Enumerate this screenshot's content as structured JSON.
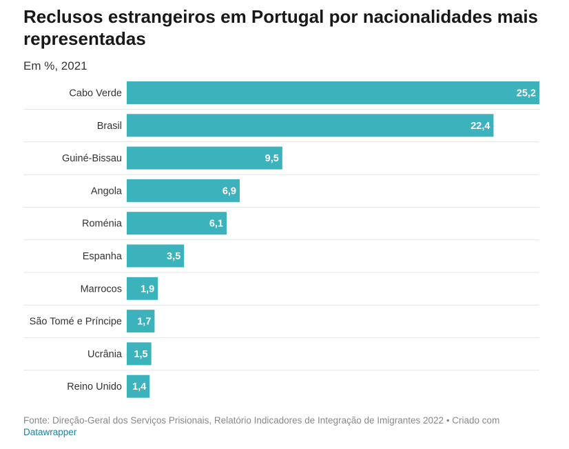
{
  "header": {
    "title": "Reclusos estrangeiros em Portugal por nacionalidades mais representadas",
    "subtitle": "Em %, 2021"
  },
  "footer": {
    "source": "Fonte: Direção-Geral dos Serviços Prisionais, Relatório Indicadores de Integração de Imigrantes 2022 • Criado com",
    "link": "Datawrapper"
  },
  "chart_data": {
    "type": "bar",
    "orientation": "horizontal",
    "categories": [
      "Cabo Verde",
      "Brasil",
      "Guiné-Bissau",
      "Angola",
      "Roménia",
      "Espanha",
      "Marrocos",
      "São Tomé e Príncipe",
      "Ucrânia",
      "Reino Unido"
    ],
    "values": [
      25.2,
      22.4,
      9.5,
      6.9,
      6.1,
      3.5,
      1.9,
      1.7,
      1.5,
      1.4
    ],
    "value_labels": [
      "25,2",
      "22,4",
      "9,5",
      "6,9",
      "6,1",
      "3,5",
      "1,9",
      "1,7",
      "1,5",
      "1,4"
    ],
    "title": "Reclusos estrangeiros em Portugal por nacionalidades mais representadas",
    "subtitle": "Em %, 2021",
    "xlim": [
      0,
      25.2
    ],
    "grid": false,
    "bar_color": "#3bb2bc",
    "value_label_color": "#ffffff",
    "separator_color": "#e3e3e3"
  }
}
